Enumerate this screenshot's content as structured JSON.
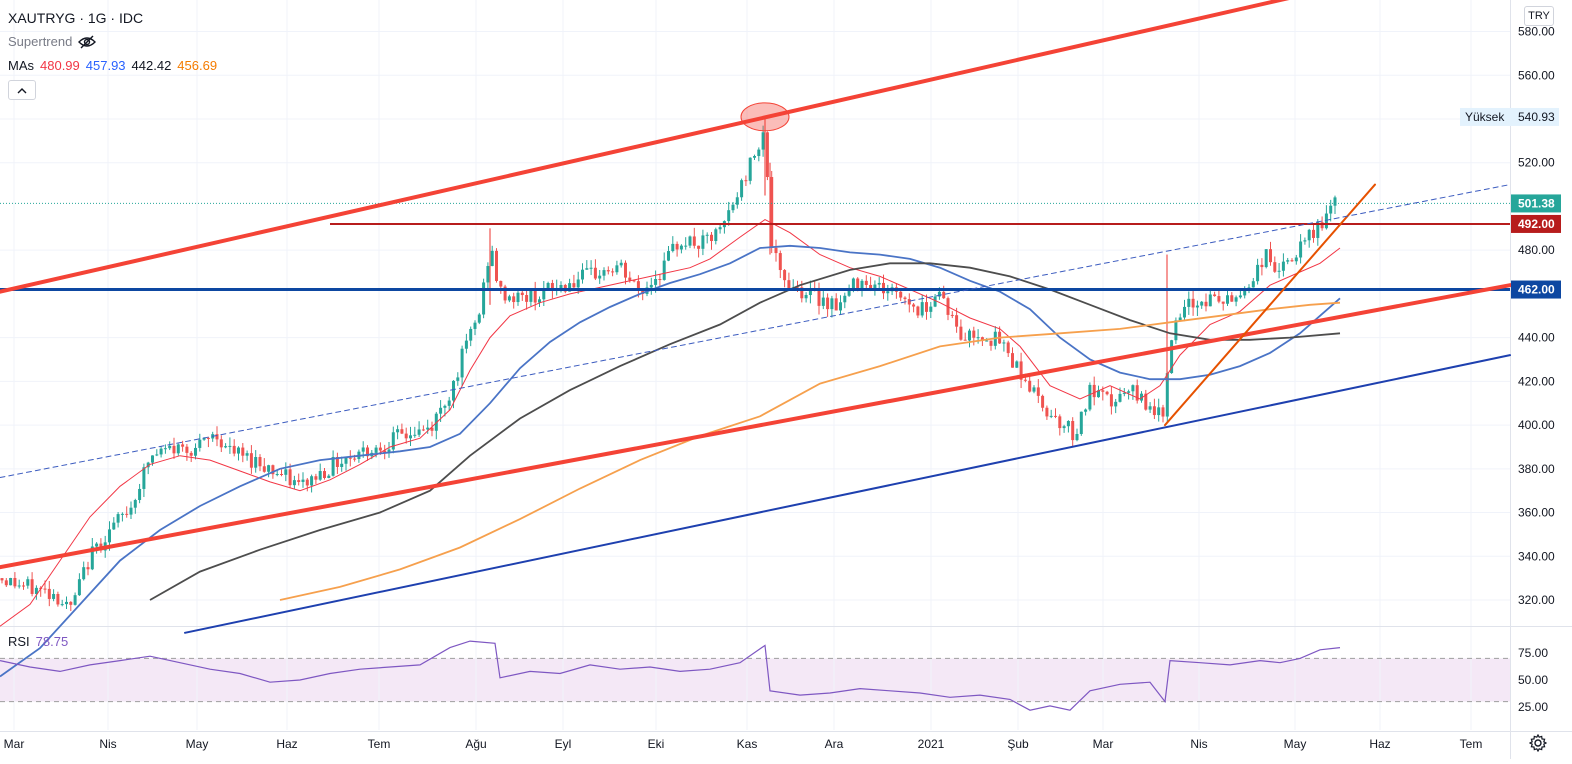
{
  "header": {
    "symbol": "XAUTRYG · 1G · IDC",
    "supertrend_label": "Supertrend",
    "mas_label": "MAs",
    "ma_values": [
      {
        "value": "480.99",
        "color": "#f23645"
      },
      {
        "value": "457.93",
        "color": "#2962ff"
      },
      {
        "value": "442.42",
        "color": "#131722"
      },
      {
        "value": "456.69",
        "color": "#f57c00"
      }
    ],
    "collapse_icon": "chevron-up-icon",
    "eye_icon": "eye-crossed-icon"
  },
  "currency": "TRY",
  "settings_icon": "gear-icon",
  "rsi": {
    "label": "RSI",
    "value": "78.75",
    "ticks": [
      "75.00",
      "50.00",
      "25.00"
    ],
    "band": [
      30,
      70
    ],
    "color": "#7e57c2"
  },
  "chart_data": {
    "type": "candlestick",
    "y_ticks": [
      "580.00",
      "560.00",
      "540.00",
      "520.00",
      "480.00",
      "440.00",
      "420.00",
      "400.00",
      "380.00",
      "360.00",
      "340.00",
      "320.00"
    ],
    "x_ticks": [
      "Mar",
      "Nis",
      "May",
      "Haz",
      "Tem",
      "Ağu",
      "Eyl",
      "Eki",
      "Kas",
      "Ara",
      "2021",
      "Şub",
      "Mar",
      "Nis",
      "May",
      "Haz",
      "Tem"
    ],
    "ylim": [
      305,
      590
    ],
    "price_labels": [
      {
        "kind": "high",
        "label": "Yüksek",
        "value": "540.93"
      },
      {
        "kind": "last",
        "value": "501.38",
        "color": "#26a69a"
      },
      {
        "kind": "level",
        "value": "492.00",
        "color": "#b71c1c"
      },
      {
        "kind": "level",
        "value": "462.00",
        "color": "#0d47a1"
      }
    ],
    "ma_lines": [
      {
        "color": "#f23645",
        "points": [
          [
            0,
            308
          ],
          [
            30,
            318
          ],
          [
            60,
            338
          ],
          [
            90,
            358
          ],
          [
            120,
            372
          ],
          [
            150,
            382
          ],
          [
            180,
            386
          ],
          [
            210,
            384
          ],
          [
            240,
            379
          ],
          [
            270,
            374
          ],
          [
            300,
            370
          ],
          [
            330,
            375
          ],
          [
            360,
            382
          ],
          [
            390,
            390
          ],
          [
            420,
            394
          ],
          [
            450,
            407
          ],
          [
            470,
            425
          ],
          [
            490,
            440
          ],
          [
            510,
            450
          ],
          [
            540,
            456
          ],
          [
            570,
            460
          ],
          [
            600,
            463
          ],
          [
            630,
            466
          ],
          [
            660,
            469
          ],
          [
            690,
            472
          ],
          [
            710,
            476
          ],
          [
            740,
            486
          ],
          [
            765,
            494
          ],
          [
            790,
            488
          ],
          [
            820,
            478
          ],
          [
            850,
            472
          ],
          [
            880,
            468
          ],
          [
            910,
            462
          ],
          [
            940,
            456
          ],
          [
            970,
            449
          ],
          [
            1000,
            444
          ],
          [
            1020,
            436
          ],
          [
            1050,
            418
          ],
          [
            1080,
            412
          ],
          [
            1110,
            418
          ],
          [
            1140,
            412
          ],
          [
            1160,
            418
          ],
          [
            1180,
            432
          ],
          [
            1210,
            446
          ],
          [
            1240,
            452
          ],
          [
            1270,
            464
          ],
          [
            1300,
            470
          ],
          [
            1320,
            474
          ],
          [
            1340,
            481
          ]
        ]
      },
      {
        "color": "#4a74c6",
        "points": [
          [
            0,
            285
          ],
          [
            40,
            298
          ],
          [
            80,
            318
          ],
          [
            120,
            338
          ],
          [
            160,
            352
          ],
          [
            200,
            363
          ],
          [
            240,
            372
          ],
          [
            280,
            380
          ],
          [
            320,
            384
          ],
          [
            360,
            386
          ],
          [
            400,
            388
          ],
          [
            430,
            390
          ],
          [
            460,
            396
          ],
          [
            490,
            410
          ],
          [
            520,
            426
          ],
          [
            550,
            438
          ],
          [
            580,
            447
          ],
          [
            610,
            454
          ],
          [
            640,
            460
          ],
          [
            670,
            465
          ],
          [
            700,
            469
          ],
          [
            730,
            474
          ],
          [
            760,
            481
          ],
          [
            790,
            482
          ],
          [
            820,
            481
          ],
          [
            850,
            479
          ],
          [
            880,
            478
          ],
          [
            910,
            476
          ],
          [
            940,
            472
          ],
          [
            970,
            466
          ],
          [
            1000,
            461
          ],
          [
            1030,
            453
          ],
          [
            1060,
            440
          ],
          [
            1090,
            430
          ],
          [
            1120,
            424
          ],
          [
            1150,
            421
          ],
          [
            1180,
            421
          ],
          [
            1210,
            423
          ],
          [
            1240,
            427
          ],
          [
            1270,
            433
          ],
          [
            1300,
            442
          ],
          [
            1320,
            450
          ],
          [
            1340,
            458
          ]
        ]
      },
      {
        "color": "#4d4d4d",
        "points": [
          [
            150,
            320
          ],
          [
            200,
            333
          ],
          [
            260,
            343
          ],
          [
            320,
            352
          ],
          [
            380,
            360
          ],
          [
            430,
            370
          ],
          [
            470,
            386
          ],
          [
            520,
            403
          ],
          [
            570,
            416
          ],
          [
            620,
            427
          ],
          [
            670,
            437
          ],
          [
            720,
            446
          ],
          [
            760,
            456
          ],
          [
            800,
            464
          ],
          [
            850,
            471
          ],
          [
            890,
            474
          ],
          [
            930,
            474
          ],
          [
            970,
            472
          ],
          [
            1010,
            468
          ],
          [
            1050,
            462
          ],
          [
            1090,
            455
          ],
          [
            1130,
            448
          ],
          [
            1170,
            442
          ],
          [
            1210,
            439
          ],
          [
            1250,
            439
          ],
          [
            1290,
            440
          ],
          [
            1340,
            442
          ]
        ]
      },
      {
        "color": "#f6a04d",
        "points": [
          [
            280,
            320
          ],
          [
            340,
            326
          ],
          [
            400,
            334
          ],
          [
            460,
            344
          ],
          [
            520,
            357
          ],
          [
            580,
            371
          ],
          [
            640,
            384
          ],
          [
            700,
            395
          ],
          [
            760,
            404
          ],
          [
            820,
            419
          ],
          [
            880,
            427
          ],
          [
            940,
            436
          ],
          [
            1000,
            440
          ],
          [
            1060,
            442
          ],
          [
            1120,
            444
          ],
          [
            1170,
            447
          ],
          [
            1220,
            450
          ],
          [
            1270,
            453
          ],
          [
            1310,
            455
          ],
          [
            1340,
            456
          ]
        ]
      }
    ],
    "rsi_series": [
      [
        0,
        68
      ],
      [
        30,
        62
      ],
      [
        60,
        58
      ],
      [
        90,
        64
      ],
      [
        120,
        68
      ],
      [
        150,
        72
      ],
      [
        180,
        66
      ],
      [
        210,
        60
      ],
      [
        240,
        56
      ],
      [
        270,
        48
      ],
      [
        300,
        50
      ],
      [
        330,
        56
      ],
      [
        360,
        60
      ],
      [
        390,
        62
      ],
      [
        420,
        64
      ],
      [
        450,
        80
      ],
      [
        470,
        86
      ],
      [
        495,
        84
      ],
      [
        500,
        52
      ],
      [
        530,
        58
      ],
      [
        560,
        56
      ],
      [
        590,
        64
      ],
      [
        620,
        60
      ],
      [
        650,
        62
      ],
      [
        680,
        58
      ],
      [
        710,
        60
      ],
      [
        740,
        66
      ],
      [
        765,
        82
      ],
      [
        770,
        40
      ],
      [
        800,
        36
      ],
      [
        830,
        38
      ],
      [
        860,
        42
      ],
      [
        890,
        40
      ],
      [
        920,
        38
      ],
      [
        950,
        34
      ],
      [
        980,
        36
      ],
      [
        1010,
        32
      ],
      [
        1030,
        22
      ],
      [
        1050,
        26
      ],
      [
        1070,
        22
      ],
      [
        1090,
        40
      ],
      [
        1120,
        46
      ],
      [
        1150,
        48
      ],
      [
        1165,
        30
      ],
      [
        1170,
        68
      ],
      [
        1200,
        66
      ],
      [
        1230,
        64
      ],
      [
        1260,
        68
      ],
      [
        1280,
        66
      ],
      [
        1300,
        70
      ],
      [
        1320,
        78
      ],
      [
        1340,
        80
      ]
    ],
    "trend_lines": [
      {
        "color": "#f44336",
        "width": 4,
        "from": [
          0,
          461
        ],
        "to": [
          1305,
          597
        ]
      },
      {
        "color": "#f44336",
        "width": 4,
        "from": [
          0,
          335
        ],
        "to": [
          1510,
          464
        ]
      },
      {
        "color": "#1e40af",
        "width": 2,
        "from": [
          185,
          305
        ],
        "to": [
          1510,
          432
        ]
      },
      {
        "color": "#e65100",
        "width": 2,
        "from": [
          1165,
          400
        ],
        "to": [
          1375,
          510
        ]
      },
      {
        "color": "#3b5bbf",
        "width": 1,
        "dash": true,
        "from": [
          0,
          376
        ],
        "to": [
          1510,
          510
        ]
      }
    ],
    "horizontal_lines": [
      {
        "value": 462,
        "color": "#0d47a1",
        "width": 3,
        "from_x": 0
      },
      {
        "value": 492,
        "color": "#b71c1c",
        "width": 2,
        "from_x": 330
      },
      {
        "value": 501.38,
        "color": "#26a69a",
        "width": 1,
        "dotted": true,
        "from_x": 0
      }
    ],
    "highlight": {
      "x": 765,
      "value": 541,
      "color": "#f44336"
    }
  }
}
